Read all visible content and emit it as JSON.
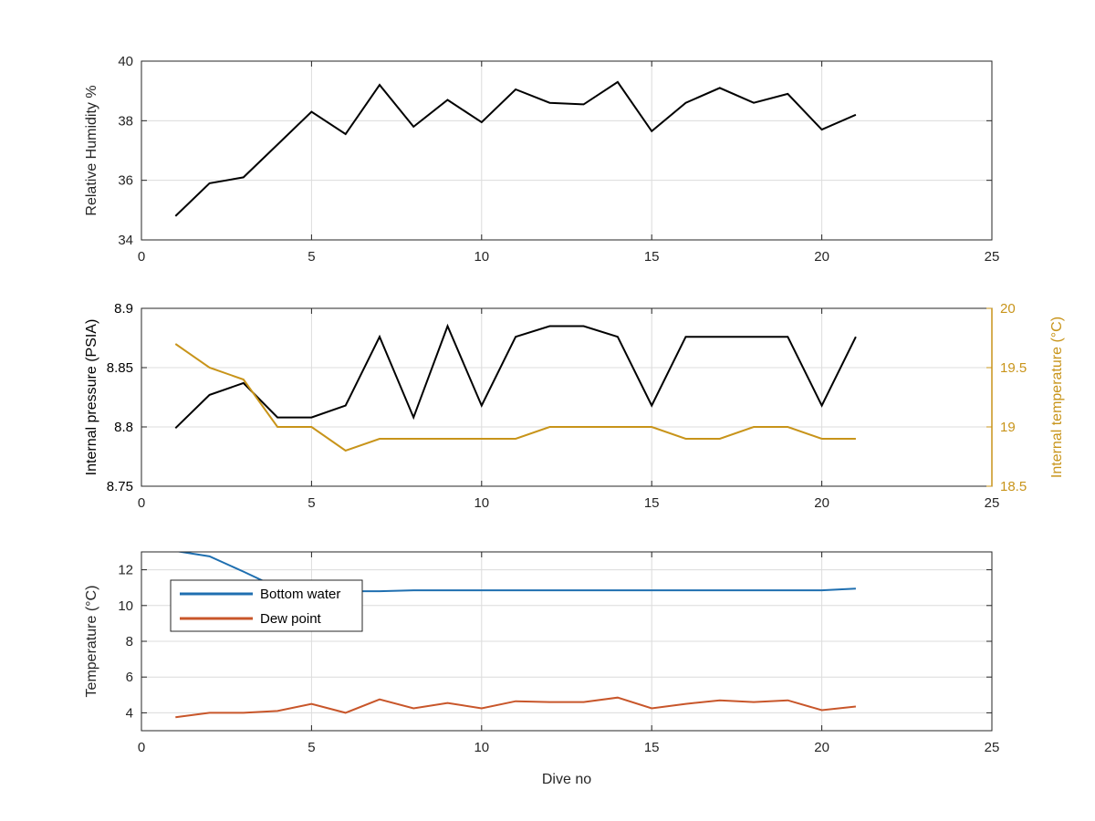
{
  "colors": {
    "black_series": "#000000",
    "gold_series": "#C8941A",
    "blue_series": "#1F6FB0",
    "orange_series": "#C8562A",
    "grid": "#dcdcdc",
    "axis": "#262626"
  },
  "chart_data": [
    {
      "type": "line",
      "xlabel": "",
      "ylabel": "Relative Humidity %",
      "xlim": [
        0,
        25
      ],
      "ylim": [
        34,
        40
      ],
      "xticks": [
        0,
        5,
        10,
        15,
        20,
        25
      ],
      "yticks": [
        34,
        36,
        38,
        40
      ],
      "grid": true,
      "x": [
        1,
        2,
        3,
        4,
        5,
        6,
        7,
        8,
        9,
        10,
        11,
        12,
        13,
        14,
        15,
        16,
        17,
        18,
        19,
        20,
        21
      ],
      "series": [
        {
          "color": "#000000",
          "values": [
            34.8,
            35.9,
            36.1,
            37.2,
            38.3,
            37.55,
            39.2,
            37.8,
            38.7,
            37.95,
            39.05,
            38.6,
            38.55,
            39.3,
            37.65,
            38.6,
            39.1,
            38.6,
            38.9,
            37.7,
            38.2
          ]
        }
      ]
    },
    {
      "type": "line",
      "xlabel": "",
      "ylabel": "Internal pressure (PSIA)",
      "ylabel_right": "Internal temperature (°C)",
      "xlim": [
        0,
        25
      ],
      "ylim": [
        8.75,
        8.9
      ],
      "ylim_right": [
        18.5,
        20
      ],
      "xticks": [
        0,
        5,
        10,
        15,
        20,
        25
      ],
      "yticks": [
        "8.75",
        "8.8",
        "8.85",
        "8.9"
      ],
      "yticks_right": [
        "18.5",
        "19",
        "19.5",
        "20"
      ],
      "grid": true,
      "x": [
        1,
        2,
        3,
        4,
        5,
        6,
        7,
        8,
        9,
        10,
        11,
        12,
        13,
        14,
        15,
        16,
        17,
        18,
        19,
        20,
        21
      ],
      "series": [
        {
          "axis": "left",
          "color": "#000000",
          "values": [
            8.799,
            8.827,
            8.837,
            8.808,
            8.808,
            8.818,
            8.876,
            8.808,
            8.885,
            8.818,
            8.876,
            8.885,
            8.885,
            8.876,
            8.818,
            8.876,
            8.876,
            8.876,
            8.876,
            8.818,
            8.876
          ]
        },
        {
          "axis": "right",
          "color": "#C8941A",
          "values": [
            19.7,
            19.5,
            19.4,
            19.0,
            19.0,
            18.8,
            18.9,
            18.9,
            18.9,
            18.9,
            18.9,
            19.0,
            19.0,
            19.0,
            19.0,
            18.9,
            18.9,
            19.0,
            19.0,
            18.9,
            18.9
          ]
        }
      ]
    },
    {
      "type": "line",
      "xlabel": "Dive no",
      "ylabel": "Temperature (°C)",
      "xlim": [
        0,
        25
      ],
      "ylim": [
        3,
        13
      ],
      "xticks": [
        0,
        5,
        10,
        15,
        20,
        25
      ],
      "yticks": [
        4,
        6,
        8,
        10,
        12
      ],
      "grid": true,
      "legend": "top-left",
      "x": [
        1,
        2,
        3,
        4,
        5,
        6,
        7,
        8,
        9,
        10,
        11,
        12,
        13,
        14,
        15,
        16,
        17,
        18,
        19,
        20,
        21
      ],
      "series": [
        {
          "name": "Bottom water",
          "color": "#1F6FB0",
          "values": [
            13.05,
            12.75,
            11.9,
            11.0,
            10.8,
            10.8,
            10.8,
            10.85,
            10.85,
            10.85,
            10.85,
            10.85,
            10.85,
            10.85,
            10.85,
            10.85,
            10.85,
            10.85,
            10.85,
            10.85,
            10.95
          ]
        },
        {
          "name": "Dew point",
          "color": "#C8562A",
          "values": [
            3.75,
            4.0,
            4.0,
            4.1,
            4.5,
            4.0,
            4.75,
            4.25,
            4.55,
            4.25,
            4.65,
            4.6,
            4.6,
            4.85,
            4.25,
            4.5,
            4.7,
            4.6,
            4.7,
            4.15,
            4.35
          ]
        }
      ]
    }
  ]
}
